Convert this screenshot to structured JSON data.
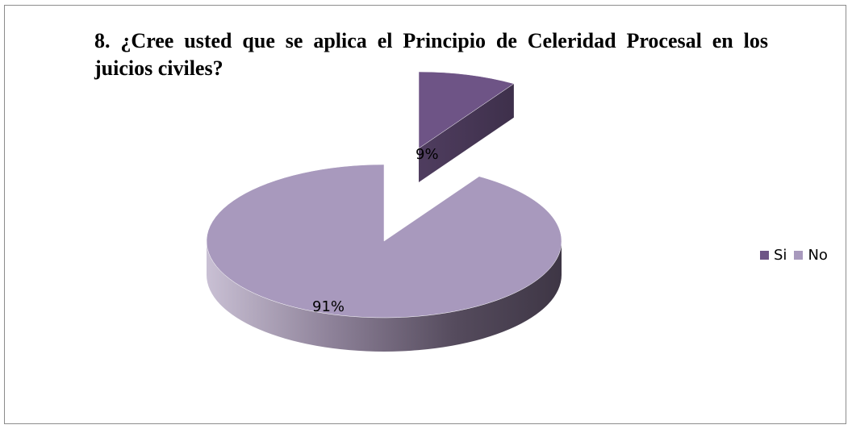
{
  "chart_data": {
    "type": "pie",
    "title": "8. ¿Cree usted que se aplica el Principio de Celeridad Procesal en los juicios civiles?",
    "categories": [
      "Si",
      "No"
    ],
    "values": [
      9,
      91
    ],
    "labels": [
      "9%",
      "91%"
    ],
    "colors": {
      "Si": "#6e5486",
      "No": "#a899bd"
    },
    "style": "3d-exploded",
    "legend_position": "right"
  }
}
